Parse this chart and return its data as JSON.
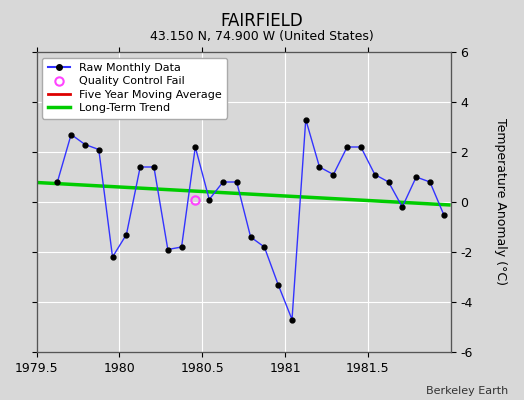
{
  "title": "FAIRFIELD",
  "subtitle": "43.150 N, 74.900 W (United States)",
  "ylabel": "Temperature Anomaly (°C)",
  "credit": "Berkeley Earth",
  "xlim": [
    1979.5,
    1982.0
  ],
  "ylim": [
    -6,
    6
  ],
  "xticks": [
    1979.5,
    1980.0,
    1980.5,
    1981.0,
    1981.5
  ],
  "yticks": [
    -6,
    -4,
    -2,
    0,
    2,
    4,
    6
  ],
  "bg_color": "#d8d8d8",
  "plot_bg_color": "#d8d8d8",
  "monthly_x": [
    1979.625,
    1979.708,
    1979.792,
    1979.875,
    1979.958,
    1980.042,
    1980.125,
    1980.208,
    1980.292,
    1980.375,
    1980.458,
    1980.542,
    1980.625,
    1980.708,
    1980.792,
    1980.875,
    1980.958,
    1981.042,
    1981.125,
    1981.208,
    1981.292,
    1981.375,
    1981.458,
    1981.542,
    1981.625,
    1981.708,
    1981.792,
    1981.875,
    1981.958
  ],
  "monthly_y": [
    0.8,
    2.7,
    2.3,
    2.1,
    -2.2,
    -1.3,
    1.4,
    1.4,
    -1.9,
    -1.8,
    2.2,
    0.1,
    0.8,
    0.8,
    -1.4,
    -1.8,
    -3.3,
    -4.7,
    3.3,
    1.4,
    1.1,
    2.2,
    2.2,
    1.1,
    0.8,
    -0.2,
    1.0,
    0.8,
    -0.5
  ],
  "qc_fail_x": [
    1980.458
  ],
  "qc_fail_y": [
    0.1
  ],
  "trend_x": [
    1979.5,
    1982.0
  ],
  "trend_y": [
    0.78,
    -0.12
  ],
  "line_color": "#3333ff",
  "marker_color": "#000000",
  "qc_color": "#ff44ff",
  "trend_color": "#00cc00",
  "mavg_color": "#dd0000",
  "legend_bg": "#ffffff",
  "grid_color": "#ffffff"
}
